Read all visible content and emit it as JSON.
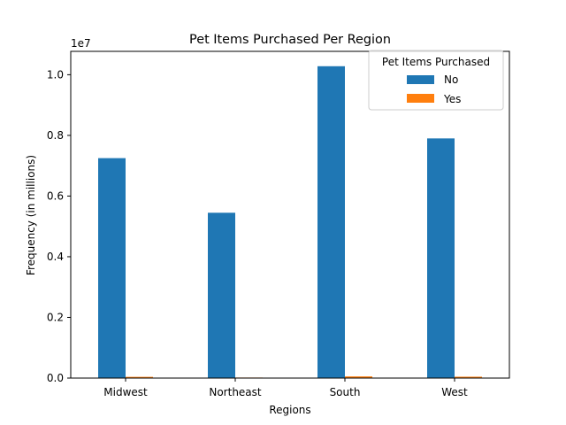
{
  "chart_data": {
    "type": "bar",
    "title": "Pet Items Purchased Per Region",
    "xlabel": "Regions",
    "ylabel": "Frequency (in millions)",
    "y_offset_label": "1e7",
    "categories": [
      "Midwest",
      "Northeast",
      "South",
      "West"
    ],
    "ylim": [
      0,
      1.077
    ],
    "yticks": [
      0.0,
      0.2,
      0.4,
      0.6,
      0.8,
      1.0
    ],
    "ytick_labels": [
      "0.0",
      "0.2",
      "0.4",
      "0.6",
      "0.8",
      "1.0"
    ],
    "legend": {
      "title": "Pet Items Purchased",
      "placement": "top-right",
      "entries": [
        "No",
        "Yes"
      ]
    },
    "series": [
      {
        "name": "No",
        "color": "#1f77b4",
        "values": [
          0.725,
          0.545,
          1.028,
          0.79
        ]
      },
      {
        "name": "Yes",
        "color": "#ff7f0e",
        "values": [
          0.004,
          0.0015,
          0.0055,
          0.0045
        ]
      }
    ],
    "grid": false
  }
}
